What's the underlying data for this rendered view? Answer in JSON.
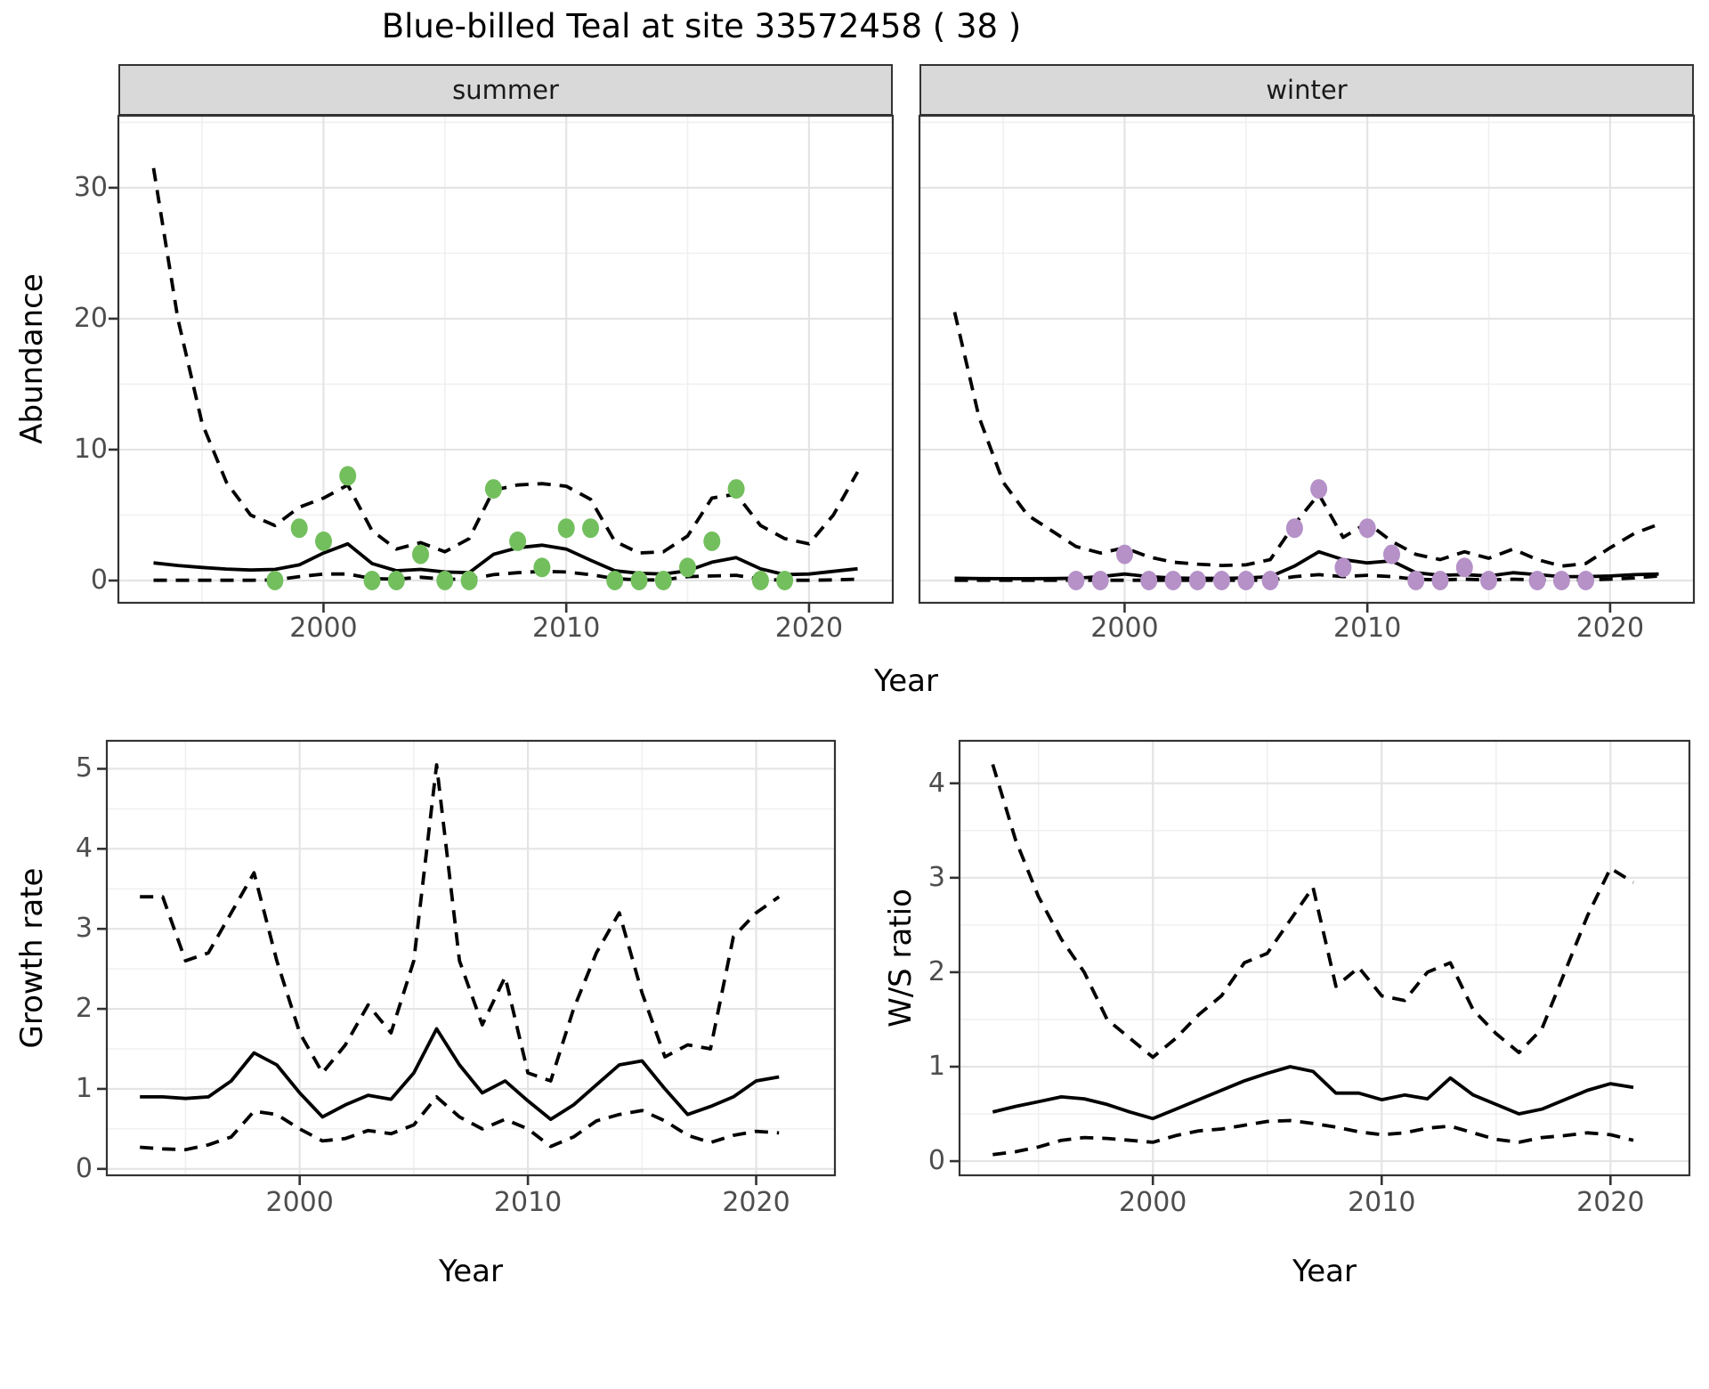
{
  "title": "Blue-billed Teal at site 33572458 ( 38 )",
  "facets": {
    "summer": "summer",
    "winter": "winter"
  },
  "axes": {
    "abundance_label": "Abundance",
    "year_label": "Year",
    "growth_label": "Growth rate",
    "ws_label": "W/S ratio"
  },
  "colors": {
    "summer_point": "#73bf5e",
    "winter_point": "#b591c8",
    "line": "#000000",
    "grid_major": "#e4e4e4",
    "grid_minor": "#f0f0f0",
    "strip_bg": "#d9d9d9",
    "panel_border": "#333333",
    "tick_mark": "#333333",
    "tick_text": "#4d4d4d"
  },
  "chart_data": [
    {
      "id": "abundance-summer",
      "type": "line",
      "facet_label": "summer",
      "xlabel": "Year",
      "ylabel": "Abundance",
      "xlim": [
        1991.55,
        2023.45
      ],
      "ylim": [
        -1.7,
        35.5
      ],
      "x_ticks": [
        2000,
        2010,
        2020
      ],
      "y_ticks": [
        0,
        10,
        20,
        30
      ],
      "x": [
        1993,
        1994,
        1995,
        1996,
        1997,
        1998,
        1999,
        2000,
        2001,
        2002,
        2003,
        2004,
        2005,
        2006,
        2007,
        2008,
        2009,
        2010,
        2011,
        2012,
        2013,
        2014,
        2015,
        2016,
        2017,
        2018,
        2019,
        2020,
        2021,
        2022
      ],
      "series": [
        {
          "name": "fitted abundance (median)",
          "style": "solid",
          "values": [
            1.35,
            1.15,
            1.0,
            0.88,
            0.8,
            0.85,
            1.2,
            2.1,
            2.8,
            1.3,
            0.75,
            0.85,
            0.65,
            0.6,
            2.0,
            2.5,
            2.7,
            2.4,
            1.55,
            0.75,
            0.55,
            0.5,
            0.75,
            1.4,
            1.75,
            0.9,
            0.45,
            0.5,
            0.7,
            0.9
          ]
        },
        {
          "name": "upper credible interval",
          "style": "dashed",
          "values": [
            31.5,
            20.0,
            12.0,
            7.5,
            5.0,
            4.2,
            5.6,
            6.3,
            7.3,
            3.8,
            2.4,
            2.9,
            2.2,
            3.2,
            6.9,
            7.3,
            7.4,
            7.2,
            6.2,
            3.0,
            2.1,
            2.2,
            3.4,
            6.3,
            6.6,
            4.2,
            3.2,
            2.8,
            5.0,
            8.3
          ]
        },
        {
          "name": "lower credible interval",
          "style": "dashed",
          "values": [
            0.02,
            0.02,
            0.02,
            0.02,
            0.02,
            0.05,
            0.3,
            0.5,
            0.5,
            0.15,
            0.1,
            0.25,
            0.1,
            0.1,
            0.45,
            0.6,
            0.7,
            0.65,
            0.45,
            0.15,
            0.05,
            0.05,
            0.3,
            0.35,
            0.4,
            0.1,
            0.02,
            0.02,
            0.05,
            0.1
          ]
        }
      ],
      "points": {
        "name": "observed summer counts",
        "color_key": "summer_point",
        "x": [
          1998,
          1999,
          2000,
          2001,
          2002,
          2003,
          2004,
          2005,
          2006,
          2007,
          2008,
          2009,
          2010,
          2011,
          2012,
          2013,
          2014,
          2015,
          2016,
          2017,
          2018,
          2019
        ],
        "y": [
          0,
          4,
          3,
          8,
          0,
          0,
          2,
          0,
          0,
          7,
          3,
          1,
          4,
          4,
          0,
          0,
          0,
          1,
          3,
          7,
          0,
          0
        ]
      }
    },
    {
      "id": "abundance-winter",
      "type": "line",
      "facet_label": "winter",
      "xlabel": "Year",
      "ylabel": "Abundance",
      "xlim": [
        1991.55,
        2023.45
      ],
      "ylim": [
        -1.7,
        35.5
      ],
      "x_ticks": [
        2000,
        2010,
        2020
      ],
      "y_ticks": [
        0,
        10,
        20,
        30
      ],
      "x": [
        1993,
        1994,
        1995,
        1996,
        1997,
        1998,
        1999,
        2000,
        2001,
        2002,
        2003,
        2004,
        2005,
        2006,
        2007,
        2008,
        2009,
        2010,
        2011,
        2012,
        2013,
        2014,
        2015,
        2016,
        2017,
        2018,
        2019,
        2020,
        2021,
        2022
      ],
      "series": [
        {
          "name": "fitted abundance (median)",
          "style": "solid",
          "values": [
            0.18,
            0.15,
            0.14,
            0.14,
            0.15,
            0.18,
            0.3,
            0.5,
            0.3,
            0.2,
            0.17,
            0.17,
            0.2,
            0.3,
            1.1,
            2.2,
            1.6,
            1.35,
            1.5,
            0.6,
            0.4,
            0.45,
            0.35,
            0.6,
            0.45,
            0.3,
            0.3,
            0.35,
            0.45,
            0.5
          ]
        },
        {
          "name": "upper credible interval",
          "style": "dashed",
          "values": [
            20.5,
            12.5,
            7.5,
            5.0,
            3.8,
            2.6,
            2.1,
            2.5,
            1.8,
            1.4,
            1.25,
            1.15,
            1.2,
            1.6,
            4.3,
            6.6,
            3.3,
            4.4,
            3.0,
            2.0,
            1.6,
            2.2,
            1.7,
            2.4,
            1.6,
            1.1,
            1.3,
            2.5,
            3.6,
            4.3
          ]
        },
        {
          "name": "lower credible interval",
          "style": "dashed",
          "values": [
            0.02,
            0.02,
            0.02,
            0.02,
            0.02,
            0.02,
            0.02,
            0.02,
            0.02,
            0.02,
            0.02,
            0.02,
            0.02,
            0.02,
            0.3,
            0.45,
            0.3,
            0.4,
            0.3,
            0.1,
            0.05,
            0.1,
            0.05,
            0.1,
            0.05,
            0.02,
            0.05,
            0.1,
            0.2,
            0.35
          ]
        }
      ],
      "points": {
        "name": "observed winter counts",
        "color_key": "winter_point",
        "x": [
          1998,
          1999,
          2000,
          2001,
          2002,
          2003,
          2004,
          2005,
          2006,
          2007,
          2008,
          2009,
          2010,
          2011,
          2012,
          2013,
          2014,
          2015,
          2017,
          2018,
          2019
        ],
        "y": [
          0,
          0,
          2,
          0,
          0,
          0,
          0,
          0,
          0,
          4,
          7,
          1,
          4,
          2,
          0,
          0,
          1,
          0,
          0,
          0,
          0
        ]
      }
    },
    {
      "id": "growth-rate",
      "type": "line",
      "facet_label": "",
      "xlabel": "Year",
      "ylabel": "Growth rate",
      "xlim": [
        1991.55,
        2023.45
      ],
      "ylim": [
        -0.08,
        5.35
      ],
      "x_ticks": [
        2000,
        2010,
        2020
      ],
      "y_ticks": [
        0,
        1,
        2,
        3,
        4,
        5
      ],
      "x": [
        1993,
        1994,
        1995,
        1996,
        1997,
        1998,
        1999,
        2000,
        2001,
        2002,
        2003,
        2004,
        2005,
        2006,
        2007,
        2008,
        2009,
        2010,
        2011,
        2012,
        2013,
        2014,
        2015,
        2016,
        2017,
        2018,
        2019,
        2020,
        2021
      ],
      "series": [
        {
          "name": "growth rate (median)",
          "style": "solid",
          "values": [
            0.9,
            0.9,
            0.88,
            0.9,
            1.1,
            1.45,
            1.3,
            0.95,
            0.65,
            0.8,
            0.92,
            0.87,
            1.2,
            1.75,
            1.3,
            0.95,
            1.1,
            0.85,
            0.62,
            0.8,
            1.05,
            1.3,
            1.35,
            1.0,
            0.68,
            0.78,
            0.9,
            1.1,
            1.15
          ]
        },
        {
          "name": "upper credible interval",
          "style": "dashed",
          "values": [
            3.4,
            3.4,
            2.6,
            2.7,
            3.2,
            3.7,
            2.6,
            1.7,
            1.2,
            1.55,
            2.05,
            1.7,
            2.6,
            5.05,
            2.6,
            1.8,
            2.4,
            1.2,
            1.1,
            2.0,
            2.7,
            3.2,
            2.2,
            1.4,
            1.55,
            1.5,
            2.9,
            3.2,
            3.4
          ]
        },
        {
          "name": "lower credible interval",
          "style": "dashed",
          "values": [
            0.27,
            0.25,
            0.24,
            0.3,
            0.4,
            0.72,
            0.68,
            0.5,
            0.35,
            0.38,
            0.48,
            0.44,
            0.55,
            0.9,
            0.65,
            0.5,
            0.62,
            0.5,
            0.28,
            0.4,
            0.6,
            0.68,
            0.73,
            0.6,
            0.42,
            0.33,
            0.42,
            0.47,
            0.45
          ]
        }
      ]
    },
    {
      "id": "ws-ratio",
      "type": "line",
      "facet_label": "",
      "xlabel": "Year",
      "ylabel": "W/S ratio",
      "xlim": [
        1991.55,
        2023.45
      ],
      "ylim": [
        -0.15,
        4.45
      ],
      "x_ticks": [
        2000,
        2010,
        2020
      ],
      "y_ticks": [
        0,
        1,
        2,
        3,
        4
      ],
      "x": [
        1993,
        1994,
        1995,
        1996,
        1997,
        1998,
        1999,
        2000,
        2001,
        2002,
        2003,
        2004,
        2005,
        2006,
        2007,
        2008,
        2009,
        2010,
        2011,
        2012,
        2013,
        2014,
        2015,
        2016,
        2017,
        2018,
        2019,
        2020,
        2021
      ],
      "series": [
        {
          "name": "winter/summer ratio (median)",
          "style": "solid",
          "values": [
            0.52,
            0.58,
            0.63,
            0.68,
            0.66,
            0.6,
            0.52,
            0.45,
            0.55,
            0.65,
            0.75,
            0.85,
            0.93,
            1.0,
            0.95,
            0.72,
            0.72,
            0.65,
            0.7,
            0.66,
            0.88,
            0.7,
            0.6,
            0.5,
            0.55,
            0.65,
            0.75,
            0.82,
            0.78
          ]
        },
        {
          "name": "upper credible interval",
          "style": "dashed",
          "values": [
            4.2,
            3.4,
            2.8,
            2.35,
            2.0,
            1.5,
            1.3,
            1.1,
            1.3,
            1.55,
            1.75,
            2.1,
            2.2,
            2.55,
            2.9,
            1.85,
            2.05,
            1.75,
            1.7,
            2.0,
            2.1,
            1.6,
            1.35,
            1.15,
            1.4,
            2.0,
            2.6,
            3.1,
            2.95
          ]
        },
        {
          "name": "lower credible interval",
          "style": "dashed",
          "values": [
            0.07,
            0.1,
            0.15,
            0.22,
            0.25,
            0.24,
            0.22,
            0.2,
            0.27,
            0.32,
            0.34,
            0.38,
            0.42,
            0.43,
            0.4,
            0.36,
            0.31,
            0.28,
            0.3,
            0.35,
            0.37,
            0.3,
            0.23,
            0.2,
            0.25,
            0.27,
            0.3,
            0.28,
            0.22
          ]
        }
      ]
    }
  ]
}
